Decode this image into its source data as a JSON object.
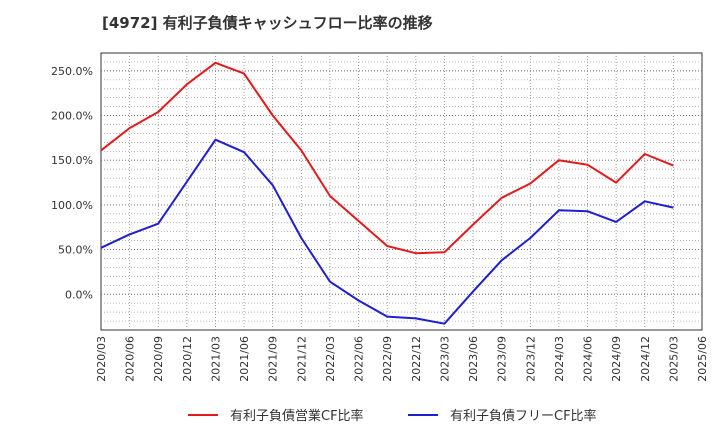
{
  "chart_data": {
    "type": "line",
    "title": "[4972]  有利子負債キャッシュフロー比率の推移",
    "xlabel": "",
    "ylabel": "",
    "x": [
      "2020/03",
      "2020/06",
      "2020/09",
      "2020/12",
      "2021/03",
      "2021/06",
      "2021/09",
      "2021/12",
      "2022/03",
      "2022/06",
      "2022/09",
      "2022/12",
      "2023/03",
      "2023/06",
      "2023/09",
      "2023/12",
      "2024/03",
      "2024/06",
      "2024/09",
      "2024/12",
      "2025/03"
    ],
    "x_ticks": [
      "2020/03",
      "2020/06",
      "2020/09",
      "2020/12",
      "2021/03",
      "2021/06",
      "2021/09",
      "2021/12",
      "2022/03",
      "2022/06",
      "2022/09",
      "2022/12",
      "2023/03",
      "2023/06",
      "2023/09",
      "2023/12",
      "2024/03",
      "2024/06",
      "2024/09",
      "2024/12",
      "2025/03",
      "2025/06"
    ],
    "y_ticks": [
      "0.0%",
      "50.0%",
      "100.0%",
      "150.0%",
      "200.0%",
      "250.0%"
    ],
    "ylim": [
      -40,
      270
    ],
    "grid": true,
    "legend_position": "bottom",
    "series": [
      {
        "name": "有利子負債営業CF比率",
        "color": "#e31a1c",
        "values": [
          161,
          186,
          204,
          235,
          259,
          247,
          200,
          161,
          110,
          82,
          54,
          46,
          47,
          78,
          108,
          124,
          150,
          145,
          125,
          157,
          144
        ]
      },
      {
        "name": "有利子負債フリーCF比率",
        "color": "#1f1fcf",
        "values": [
          52,
          67,
          79,
          126,
          173,
          159,
          122,
          63,
          14,
          -7,
          -25,
          -27,
          -33,
          3,
          38,
          63,
          94,
          93,
          81,
          104,
          97
        ]
      }
    ]
  }
}
